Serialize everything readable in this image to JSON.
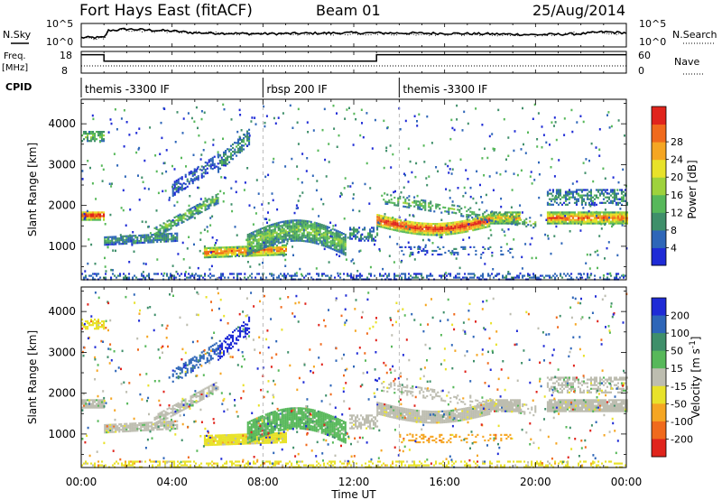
{
  "header": {
    "station": "Fort Hays East (fitACF)",
    "beam": "Beam 01",
    "date": "25/Aug/2014"
  },
  "nsky_panel": {
    "left_label": "N.Sky",
    "right_label": "N.Search",
    "left_ticks": [
      "10^5",
      "10^0"
    ],
    "right_ticks": [
      "10^5",
      "10^0"
    ]
  },
  "freq_panel": {
    "left_label": "Freq.",
    "left_unit": "[MHz]",
    "right_label": "Nave",
    "left_ticks": [
      "18",
      "8"
    ],
    "right_ticks": [
      "60",
      "0"
    ]
  },
  "cpid": {
    "label": "CPID",
    "segments": [
      {
        "name": "themis -3300 IF",
        "start_hour": 0.0,
        "end_hour": 8.0
      },
      {
        "name": "rbsp 200 IF",
        "start_hour": 8.0,
        "end_hour": 14.0
      },
      {
        "name": "themis -3300 IF",
        "start_hour": 14.0,
        "end_hour": 24.0
      }
    ]
  },
  "x_axis": {
    "title": "Time UT",
    "ticks": [
      "00:00",
      "04:00",
      "08:00",
      "12:00",
      "16:00",
      "20:00",
      "00:00"
    ]
  },
  "colors": {
    "power_scale": [
      "#1f2bd6",
      "#2e66b8",
      "#3f8f6a",
      "#57b85a",
      "#9ed23c",
      "#e8e22a",
      "#f5a623",
      "#f06a1c",
      "#e0241c"
    ],
    "velocity_scale": [
      "#1f2bd6",
      "#2e66b8",
      "#3f8f6a",
      "#57b85a",
      "#bdbdb0",
      "#e8e22a",
      "#f5a623",
      "#f06a1c",
      "#e0241c"
    ]
  },
  "chart_data": [
    {
      "type": "line",
      "title": "N.Sky / N.Search",
      "x_range_hours": [
        0,
        24
      ],
      "series": [
        {
          "name": "N.Sky",
          "x": [
            0,
            1,
            1.2,
            2,
            4,
            5,
            8,
            12,
            16,
            19,
            20,
            22,
            23,
            24
          ],
          "y": [
            2.0,
            2.0,
            3.5,
            3.8,
            3.4,
            3.0,
            2.8,
            3.0,
            2.9,
            2.7,
            2.6,
            2.8,
            3.2,
            3.0
          ]
        },
        {
          "name": "N.Search",
          "x": [
            0,
            1,
            1.2,
            2,
            4,
            8,
            12,
            16,
            20,
            22,
            24
          ],
          "y": [
            1.8,
            1.8,
            3.3,
            3.6,
            3.2,
            2.7,
            2.8,
            2.7,
            2.4,
            3.0,
            2.8
          ]
        }
      ]
    },
    {
      "type": "line",
      "title": "Freq. / Nave",
      "x_range_hours": [
        0,
        24
      ],
      "ylim_left": [
        8,
        18
      ],
      "ylim_right": [
        0,
        60
      ],
      "series": [
        {
          "name": "Freq.",
          "x": [
            0,
            1.0,
            1.0,
            13.0,
            13.0,
            24
          ],
          "y": [
            16.5,
            16.5,
            13.5,
            13.5,
            16.5,
            16.5
          ]
        },
        {
          "name": "Nave",
          "x": [
            0,
            24
          ],
          "y": [
            20,
            20
          ]
        }
      ]
    },
    {
      "type": "heatmap",
      "title": "Power",
      "xlabel": "Time UT",
      "ylabel": "Slant Range [km]",
      "colorbar_label": "Power [dB]",
      "colorbar_ticks": [
        4,
        8,
        12,
        16,
        20,
        24,
        28
      ],
      "x_range_hours": [
        0,
        24
      ],
      "y_ticks": [
        1000,
        2000,
        3000,
        4000
      ],
      "ylim": [
        180,
        4600
      ]
    },
    {
      "type": "heatmap",
      "title": "Velocity",
      "xlabel": "Time UT",
      "ylabel": "Slant Range [km]",
      "colorbar_label": "Velocity [m s^-1]",
      "colorbar_ticks": [
        200,
        100,
        50,
        15,
        -15,
        -50,
        -100,
        -200
      ],
      "x_range_hours": [
        0,
        24
      ],
      "y_ticks": [
        1000,
        2000,
        3000,
        4000
      ],
      "ylim": [
        180,
        4600
      ]
    }
  ]
}
